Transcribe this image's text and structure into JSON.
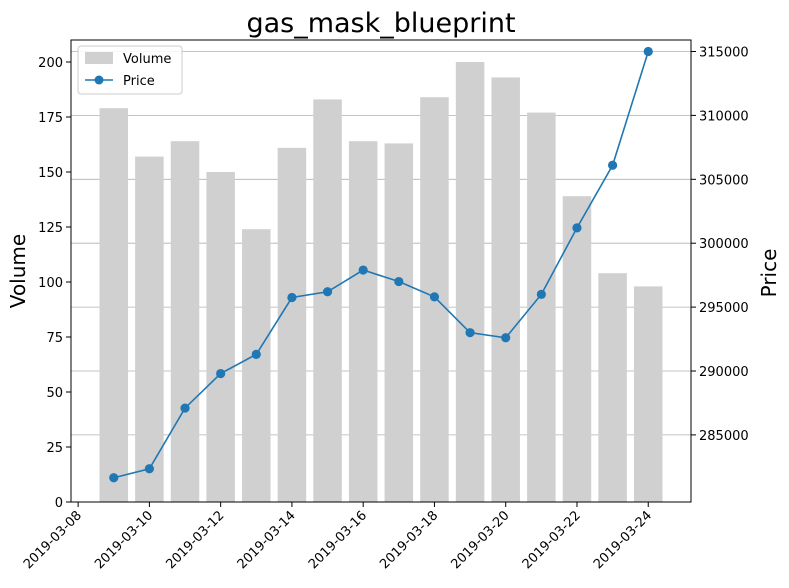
{
  "chart_data": {
    "type": "bar+line",
    "title": "gas_mask_blueprint",
    "xlabel": "",
    "ylabel_left": "Volume",
    "ylabel_right": "Price",
    "x": [
      "2019-03-09",
      "2019-03-10",
      "2019-03-11",
      "2019-03-12",
      "2019-03-13",
      "2019-03-14",
      "2019-03-15",
      "2019-03-16",
      "2019-03-17",
      "2019-03-18",
      "2019-03-19",
      "2019-03-20",
      "2019-03-21",
      "2019-03-22",
      "2019-03-23",
      "2019-03-24"
    ],
    "x_tick_labels": [
      "2019-03-08",
      "2019-03-10",
      "2019-03-12",
      "2019-03-14",
      "2019-03-16",
      "2019-03-18",
      "2019-03-20",
      "2019-03-22",
      "2019-03-24"
    ],
    "x_range": [
      "2019-03-07 19:12",
      "2019-03-25 04:48"
    ],
    "series": [
      {
        "name": "Volume",
        "kind": "bar",
        "axis": "left",
        "color": "#d0d0d0",
        "values": [
          179,
          157,
          164,
          150,
          124,
          161,
          183,
          164,
          163,
          184,
          200,
          193,
          177,
          139,
          104,
          98
        ]
      },
      {
        "name": "Price",
        "kind": "line",
        "axis": "right",
        "color": "#1f77b4",
        "values": [
          281650,
          282350,
          287100,
          289800,
          291300,
          295750,
          296200,
          297900,
          297000,
          295800,
          293000,
          292600,
          296000,
          301200,
          306100,
          315000
        ]
      }
    ],
    "ylim_left": [
      0,
      210
    ],
    "yticks_left": [
      0,
      25,
      50,
      75,
      100,
      125,
      150,
      175,
      200
    ],
    "ylim_right": [
      279750,
      315900
    ],
    "yticks_right": [
      285000,
      290000,
      295000,
      300000,
      305000,
      310000,
      315000
    ],
    "grid": "horizontal, right axis",
    "legend_position": "upper-left"
  }
}
